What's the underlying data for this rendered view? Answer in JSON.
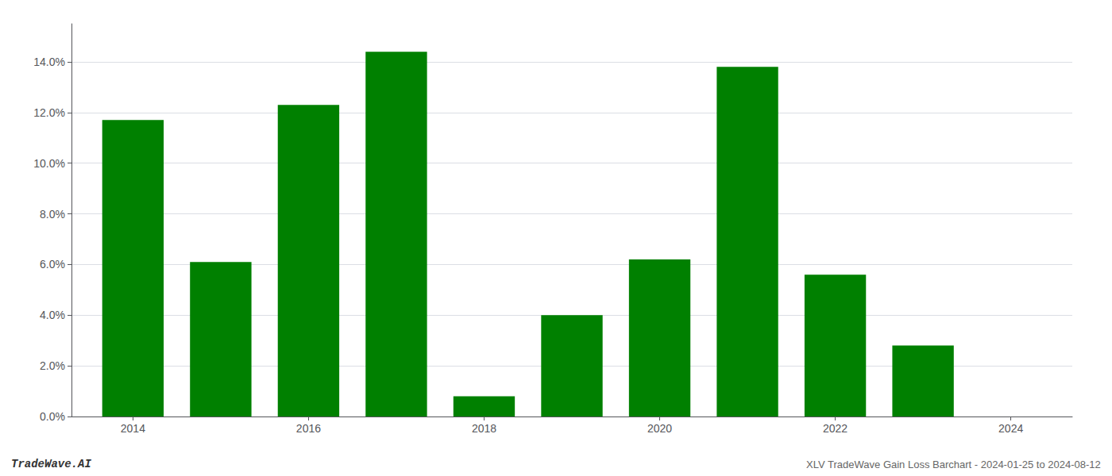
{
  "chart_data": {
    "type": "bar",
    "x": [
      2014,
      2015,
      2016,
      2017,
      2018,
      2019,
      2020,
      2021,
      2022,
      2023
    ],
    "values": [
      0.117,
      0.061,
      0.123,
      0.144,
      0.008,
      0.04,
      0.062,
      0.138,
      0.056,
      0.028
    ],
    "color": "#008000",
    "xlim": [
      2013.3,
      2024.7
    ],
    "xticks": [
      2014,
      2016,
      2018,
      2020,
      2022,
      2024
    ],
    "ylim": [
      0,
      0.155
    ],
    "yticks": [
      {
        "value": 0.0,
        "label": "0.0%"
      },
      {
        "value": 0.02,
        "label": "2.0%"
      },
      {
        "value": 0.04,
        "label": "4.0%"
      },
      {
        "value": 0.06,
        "label": "6.0%"
      },
      {
        "value": 0.08,
        "label": "8.0%"
      },
      {
        "value": 0.1,
        "label": "10.0%"
      },
      {
        "value": 0.12,
        "label": "12.0%"
      },
      {
        "value": 0.14,
        "label": "14.0%"
      }
    ],
    "grid": true,
    "annotations": [
      "TradeWave.AI",
      "XLV TradeWave Gain Loss Barchart - 2024-01-25 to 2024-08-12"
    ]
  }
}
